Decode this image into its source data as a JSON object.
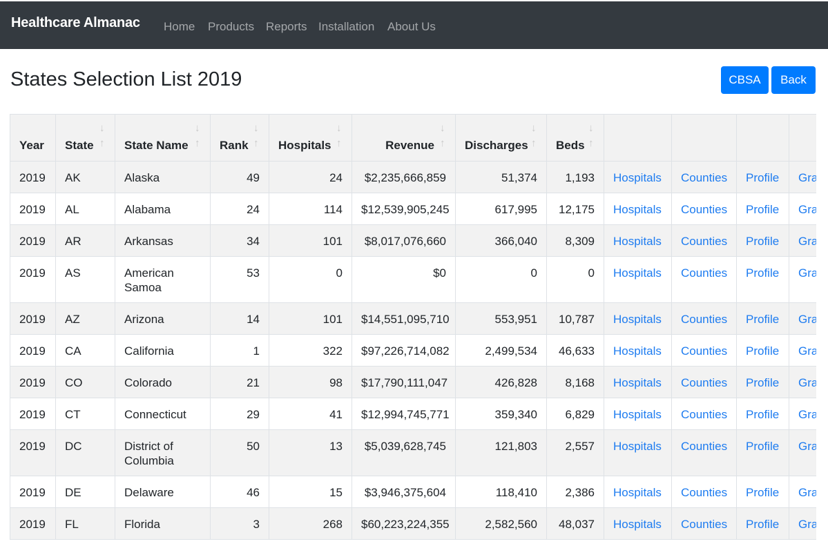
{
  "navbar": {
    "brand": "Healthcare Almanac",
    "links": [
      "Home",
      "Products",
      "Reports",
      "Installation",
      "About Us"
    ]
  },
  "page": {
    "title": "States Selection List 2019",
    "buttons": {
      "cbsa": "CBSA",
      "back": "Back"
    }
  },
  "colors": {
    "navbar_bg": "#343a40",
    "primary": "#007bff",
    "link": "#1e7cf0",
    "stripe": "#f2f2f2"
  },
  "table": {
    "headers": [
      "Year",
      "State",
      "State Name",
      "Rank",
      "Hospitals",
      "Revenue",
      "Discharges",
      "Beds"
    ],
    "link_labels": [
      "Hospitals",
      "Counties",
      "Profile",
      "Gra"
    ],
    "rows": [
      [
        "2019",
        "AK",
        "Alaska",
        "49",
        "24",
        "$2,235,666,859",
        "51,374",
        "1,193"
      ],
      [
        "2019",
        "AL",
        "Alabama",
        "24",
        "114",
        "$12,539,905,245",
        "617,995",
        "12,175"
      ],
      [
        "2019",
        "AR",
        "Arkansas",
        "34",
        "101",
        "$8,017,076,660",
        "366,040",
        "8,309"
      ],
      [
        "2019",
        "AS",
        "American Samoa",
        "53",
        "0",
        "$0",
        "0",
        "0"
      ],
      [
        "2019",
        "AZ",
        "Arizona",
        "14",
        "101",
        "$14,551,095,710",
        "553,951",
        "10,787"
      ],
      [
        "2019",
        "CA",
        "California",
        "1",
        "322",
        "$97,226,714,082",
        "2,499,534",
        "46,633"
      ],
      [
        "2019",
        "CO",
        "Colorado",
        "21",
        "98",
        "$17,790,111,047",
        "426,828",
        "8,168"
      ],
      [
        "2019",
        "CT",
        "Connecticut",
        "29",
        "41",
        "$12,994,745,771",
        "359,340",
        "6,829"
      ],
      [
        "2019",
        "DC",
        "District of Columbia",
        "50",
        "13",
        "$5,039,628,745",
        "121,803",
        "2,557"
      ],
      [
        "2019",
        "DE",
        "Delaware",
        "46",
        "15",
        "$3,946,375,604",
        "118,410",
        "2,386"
      ],
      [
        "2019",
        "FL",
        "Florida",
        "3",
        "268",
        "$60,223,224,355",
        "2,582,560",
        "48,037"
      ]
    ]
  }
}
